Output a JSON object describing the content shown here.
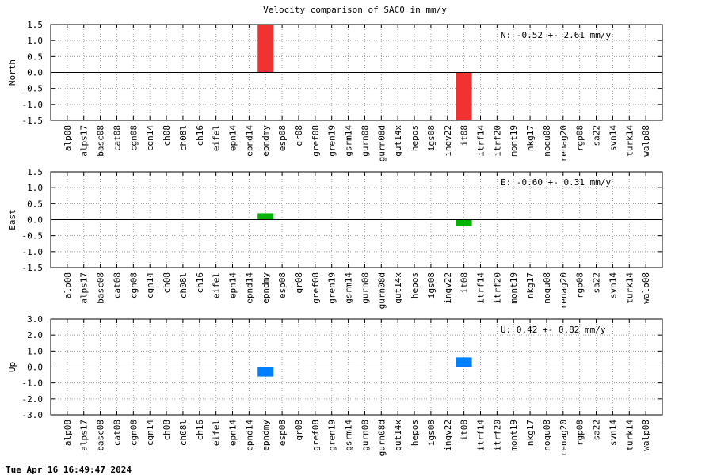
{
  "title": "Velocity comparison of SAC0 in mm/y",
  "timestamp": "Tue Apr 16 16:49:47 2024",
  "chart_data": [
    {
      "type": "bar",
      "ylabel": "North",
      "categories": [
        "alp08",
        "alps17",
        "basc08",
        "cat08",
        "cgn08",
        "cgn14",
        "ch08",
        "ch08l",
        "ch16",
        "eifel",
        "epn14",
        "epnd14",
        "epndmy",
        "esp08",
        "gr08",
        "gref08",
        "gren19",
        "gsrm14",
        "gurn08",
        "gurn08d",
        "gut14x",
        "hepos",
        "igs08",
        "ingv22",
        "it08",
        "itrf14",
        "itrf20",
        "mont19",
        "nkg17",
        "noqu08",
        "renag20",
        "rgp08",
        "sa22",
        "svn14",
        "turk14",
        "walp08"
      ],
      "values": {
        "epndmy": 1.5,
        "it08": -1.5
      },
      "color": "#f03232",
      "ylim": [
        -1.5,
        1.5
      ],
      "yticks": [
        "1.5",
        "1.0",
        "0.5",
        "0.0",
        "-0.5",
        "-1.0",
        "-1.5"
      ],
      "yticks_values": [
        1.5,
        1.0,
        0.5,
        0.0,
        -0.5,
        -1.0,
        -1.5
      ],
      "annotation": "N:  -0.52 +-  2.61 mm/y",
      "grid": true
    },
    {
      "type": "bar",
      "ylabel": "East",
      "categories": [
        "alp08",
        "alps17",
        "basc08",
        "cat08",
        "cgn08",
        "cgn14",
        "ch08",
        "ch08l",
        "ch16",
        "eifel",
        "epn14",
        "epnd14",
        "epndmy",
        "esp08",
        "gr08",
        "gref08",
        "gren19",
        "gsrm14",
        "gurn08",
        "gurn08d",
        "gut14x",
        "hepos",
        "igs08",
        "ingv22",
        "it08",
        "itrf14",
        "itrf20",
        "mont19",
        "nkg17",
        "noqu08",
        "renag20",
        "rgp08",
        "sa22",
        "svn14",
        "turk14",
        "walp08"
      ],
      "values": {
        "epndmy": 0.2,
        "it08": -0.2
      },
      "color": "#00b400",
      "ylim": [
        -1.5,
        1.5
      ],
      "yticks": [
        "1.5",
        "1.0",
        "0.5",
        "0.0",
        "-0.5",
        "-1.0",
        "-1.5"
      ],
      "yticks_values": [
        1.5,
        1.0,
        0.5,
        0.0,
        -0.5,
        -1.0,
        -1.5
      ],
      "annotation": "E:  -0.60 +-  0.31 mm/y",
      "grid": true
    },
    {
      "type": "bar",
      "ylabel": "Up",
      "categories": [
        "alp08",
        "alps17",
        "basc08",
        "cat08",
        "cgn08",
        "cgn14",
        "ch08",
        "ch08l",
        "ch16",
        "eifel",
        "epn14",
        "epnd14",
        "epndmy",
        "esp08",
        "gr08",
        "gref08",
        "gren19",
        "gsrm14",
        "gurn08",
        "gurn08d",
        "gut14x",
        "hepos",
        "igs08",
        "ingv22",
        "it08",
        "itrf14",
        "itrf20",
        "mont19",
        "nkg17",
        "noqu08",
        "renag20",
        "rgp08",
        "sa22",
        "svn14",
        "turk14",
        "walp08"
      ],
      "values": {
        "epndmy": -0.6,
        "it08": 0.6
      },
      "color": "#0080ff",
      "ylim": [
        -3.0,
        3.0
      ],
      "yticks": [
        "3.0",
        "2.0",
        "1.0",
        "0.0",
        "-1.0",
        "-2.0",
        "-3.0"
      ],
      "yticks_values": [
        3.0,
        2.0,
        1.0,
        0.0,
        -1.0,
        -2.0,
        -3.0
      ],
      "annotation": "U:   0.42 +-  0.82 mm/y",
      "grid": true
    }
  ]
}
